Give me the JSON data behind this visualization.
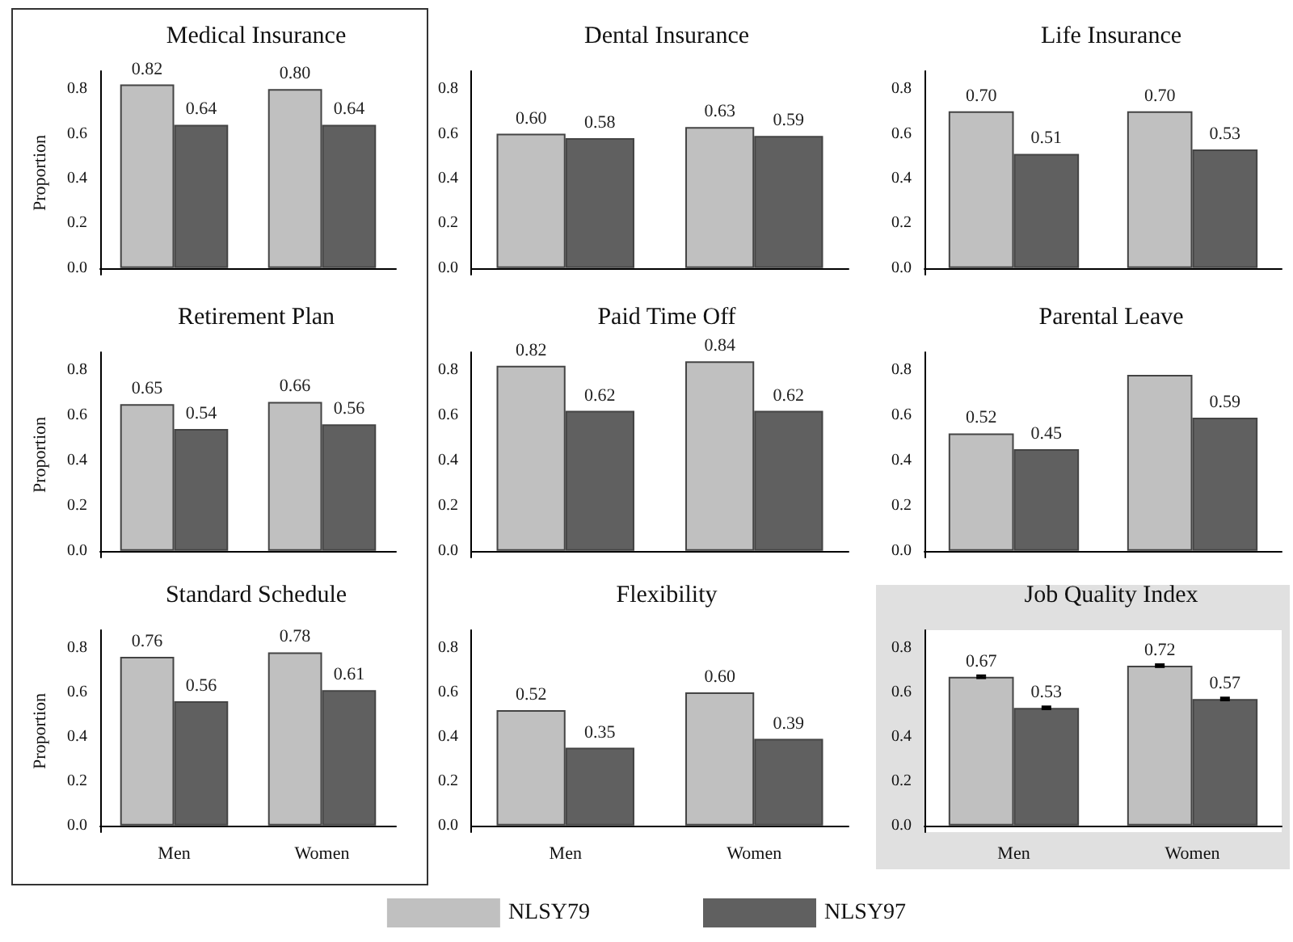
{
  "chart_data": [
    {
      "type": "bar",
      "title": "Medical Insurance",
      "ylabel": "Proportion",
      "categories": [
        null,
        null
      ],
      "ylim": [
        -0.03,
        0.88
      ],
      "yticks": [
        {
          "value": 0,
          "label": "0.0"
        },
        {
          "value": 0.2,
          "label": "0.2"
        },
        {
          "value": 0.4,
          "label": "0.4"
        },
        {
          "value": 0.6,
          "label": "0.6"
        },
        {
          "value": 0.8,
          "label": "0.8"
        }
      ],
      "tick_labels": "y",
      "series": [
        {
          "color": "#c0c0c0",
          "values": [
            0.82,
            0.8
          ],
          "value_labels": [
            "0.82",
            "0.80"
          ]
        },
        {
          "color": "#606060",
          "values": [
            0.64,
            0.64
          ],
          "value_labels": [
            "0.64",
            "0.64"
          ]
        }
      ]
    },
    {
      "type": "bar",
      "title": "Dental Insurance",
      "categories": [
        null,
        null
      ],
      "ylim": [
        -0.03,
        0.88
      ],
      "yticks": [
        {
          "value": 0,
          "label": "0.0"
        },
        {
          "value": 0.2,
          "label": "0.2"
        },
        {
          "value": 0.4,
          "label": "0.4"
        },
        {
          "value": 0.6,
          "label": "0.6"
        },
        {
          "value": 0.8,
          "label": "0.8"
        }
      ],
      "tick_labels": "y",
      "series": [
        {
          "color": "#c0c0c0",
          "values": [
            0.6,
            0.63
          ],
          "value_labels": [
            "0.60",
            "0.63"
          ]
        },
        {
          "color": "#606060",
          "values": [
            0.58,
            0.59
          ],
          "value_labels": [
            "0.58",
            "0.59"
          ]
        }
      ]
    },
    {
      "type": "bar",
      "title": "Life Insurance",
      "categories": [
        null,
        null
      ],
      "ylim": [
        -0.03,
        0.88
      ],
      "yticks": [
        {
          "value": 0,
          "label": "0.0"
        },
        {
          "value": 0.2,
          "label": "0.2"
        },
        {
          "value": 0.4,
          "label": "0.4"
        },
        {
          "value": 0.6,
          "label": "0.6"
        },
        {
          "value": 0.8,
          "label": "0.8"
        }
      ],
      "tick_labels": "y",
      "series": [
        {
          "color": "#c0c0c0",
          "values": [
            0.7,
            0.7
          ],
          "value_labels": [
            "0.70",
            "0.70"
          ]
        },
        {
          "color": "#606060",
          "values": [
            0.51,
            0.53
          ],
          "value_labels": [
            "0.51",
            "0.53"
          ]
        }
      ]
    },
    {
      "type": "bar",
      "title": "Retirement Plan",
      "ylabel": "Proportion",
      "categories": [
        null,
        null
      ],
      "ylim": [
        -0.03,
        0.88
      ],
      "yticks": [
        {
          "value": 0,
          "label": "0.0"
        },
        {
          "value": 0.2,
          "label": "0.2"
        },
        {
          "value": 0.4,
          "label": "0.4"
        },
        {
          "value": 0.6,
          "label": "0.6"
        },
        {
          "value": 0.8,
          "label": "0.8"
        }
      ],
      "tick_labels": "y",
      "series": [
        {
          "color": "#c0c0c0",
          "values": [
            0.65,
            0.66
          ],
          "value_labels": [
            "0.65",
            "0.66"
          ]
        },
        {
          "color": "#606060",
          "values": [
            0.54,
            0.56
          ],
          "value_labels": [
            "0.54",
            "0.56"
          ]
        }
      ]
    },
    {
      "type": "bar",
      "title": "Paid Time Off",
      "categories": [
        null,
        null
      ],
      "ylim": [
        -0.03,
        0.88
      ],
      "yticks": [
        {
          "value": 0,
          "label": "0.0"
        },
        {
          "value": 0.2,
          "label": "0.2"
        },
        {
          "value": 0.4,
          "label": "0.4"
        },
        {
          "value": 0.6,
          "label": "0.6"
        },
        {
          "value": 0.8,
          "label": "0.8"
        }
      ],
      "tick_labels": "y",
      "series": [
        {
          "color": "#c0c0c0",
          "values": [
            0.82,
            0.84
          ],
          "value_labels": [
            "0.82",
            "0.84"
          ]
        },
        {
          "color": "#606060",
          "values": [
            0.62,
            0.62
          ],
          "value_labels": [
            "0.62",
            "0.62"
          ]
        }
      ]
    },
    {
      "type": "bar",
      "title": "Parental Leave",
      "categories": [
        null,
        null
      ],
      "ylim": [
        -0.03,
        0.88
      ],
      "yticks": [
        {
          "value": 0,
          "label": "0.0"
        },
        {
          "value": 0.2,
          "label": "0.2"
        },
        {
          "value": 0.4,
          "label": "0.4"
        },
        {
          "value": 0.6,
          "label": "0.6"
        },
        {
          "value": 0.8,
          "label": "0.8"
        }
      ],
      "tick_labels": "y",
      "series": [
        {
          "color": "#c0c0c0",
          "values": [
            0.52,
            0.78
          ],
          "value_labels": [
            "0.52",
            null
          ]
        },
        {
          "color": "#606060",
          "values": [
            0.45,
            0.59
          ],
          "value_labels": [
            "0.45",
            "0.59"
          ]
        }
      ]
    },
    {
      "type": "bar",
      "title": "Standard Schedule",
      "ylabel": "Proportion",
      "categories": [
        "Men",
        "Women"
      ],
      "ylim": [
        -0.03,
        0.88
      ],
      "yticks": [
        {
          "value": 0,
          "label": "0.0"
        },
        {
          "value": 0.2,
          "label": "0.2"
        },
        {
          "value": 0.4,
          "label": "0.4"
        },
        {
          "value": 0.6,
          "label": "0.6"
        },
        {
          "value": 0.8,
          "label": "0.8"
        }
      ],
      "series": [
        {
          "color": "#c0c0c0",
          "values": [
            0.76,
            0.78
          ],
          "value_labels": [
            "0.76",
            "0.78"
          ]
        },
        {
          "color": "#606060",
          "values": [
            0.56,
            0.61
          ],
          "value_labels": [
            "0.56",
            "0.61"
          ]
        }
      ]
    },
    {
      "type": "bar",
      "title": "Flexibility",
      "categories": [
        "Men",
        "Women"
      ],
      "ylim": [
        -0.03,
        0.88
      ],
      "yticks": [
        {
          "value": 0,
          "label": "0.0"
        },
        {
          "value": 0.2,
          "label": "0.2"
        },
        {
          "value": 0.4,
          "label": "0.4"
        },
        {
          "value": 0.6,
          "label": "0.6"
        },
        {
          "value": 0.8,
          "label": "0.8"
        }
      ],
      "series": [
        {
          "color": "#c0c0c0",
          "values": [
            0.52,
            0.6
          ],
          "value_labels": [
            "0.52",
            "0.60"
          ]
        },
        {
          "color": "#606060",
          "values": [
            0.35,
            0.39
          ],
          "value_labels": [
            "0.35",
            "0.39"
          ]
        }
      ]
    },
    {
      "type": "bar",
      "title": "Job Quality Index",
      "categories": [
        "Men",
        "Women"
      ],
      "ylim": [
        -0.03,
        0.88
      ],
      "yticks": [
        {
          "value": 0,
          "label": "0.0"
        },
        {
          "value": 0.2,
          "label": "0.2"
        },
        {
          "value": 0.4,
          "label": "0.4"
        },
        {
          "value": 0.6,
          "label": "0.6"
        },
        {
          "value": 0.8,
          "label": "0.8"
        }
      ],
      "legend": "bottom",
      "series": [
        {
          "name": "NLSY79",
          "color": "#c0c0c0",
          "values": [
            0.67,
            0.72
          ],
          "value_labels": [
            "0.67",
            "0.72"
          ],
          "errors": [
            0.005,
            0.005
          ]
        },
        {
          "name": "NLSY97",
          "color": "#606060",
          "values": [
            0.53,
            0.57
          ],
          "value_labels": [
            "0.53",
            "0.57"
          ],
          "errors": [
            0.005,
            0.005
          ]
        }
      ]
    }
  ]
}
